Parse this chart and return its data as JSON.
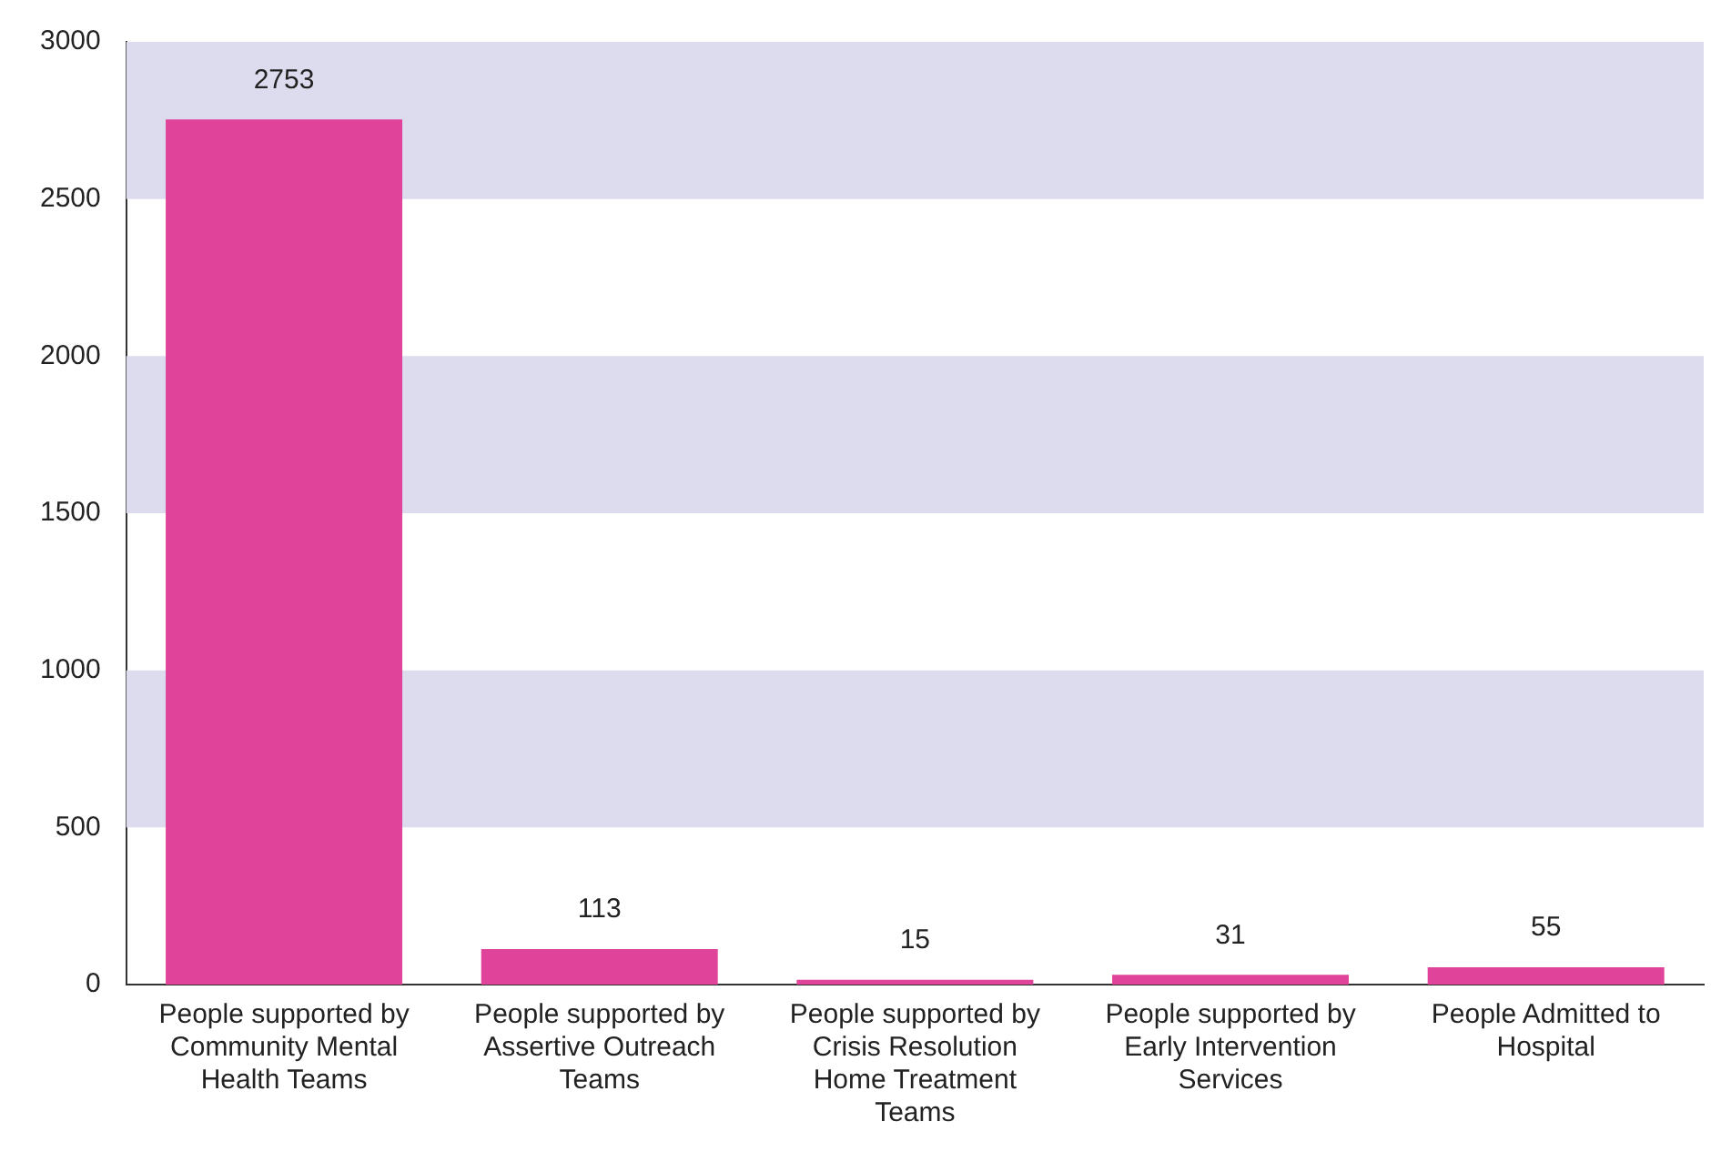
{
  "chart_data": {
    "type": "bar",
    "categories": [
      "People supported by Community Mental Health Teams",
      "People supported by Assertive Outreach Teams",
      "People supported by Crisis Resolution Home Treatment Teams",
      "People supported by Early Intervention Services",
      "People Admitted to Hospital"
    ],
    "values": [
      2753,
      113,
      15,
      31,
      55
    ],
    "color": "#e0449a",
    "ylim": [
      0,
      3000
    ],
    "yticks": [
      0,
      500,
      1000,
      1500,
      2000,
      2500,
      3000
    ],
    "bands": [
      {
        "axis": "y",
        "from": 500,
        "to": 1000,
        "color": "#dddbee"
      },
      {
        "axis": "y",
        "from": 1500,
        "to": 2000,
        "color": "#dddbee"
      },
      {
        "axis": "y",
        "from": 2500,
        "to": 3000,
        "color": "#dddbee"
      }
    ],
    "data_labels": true,
    "grid": false,
    "legend": false
  }
}
